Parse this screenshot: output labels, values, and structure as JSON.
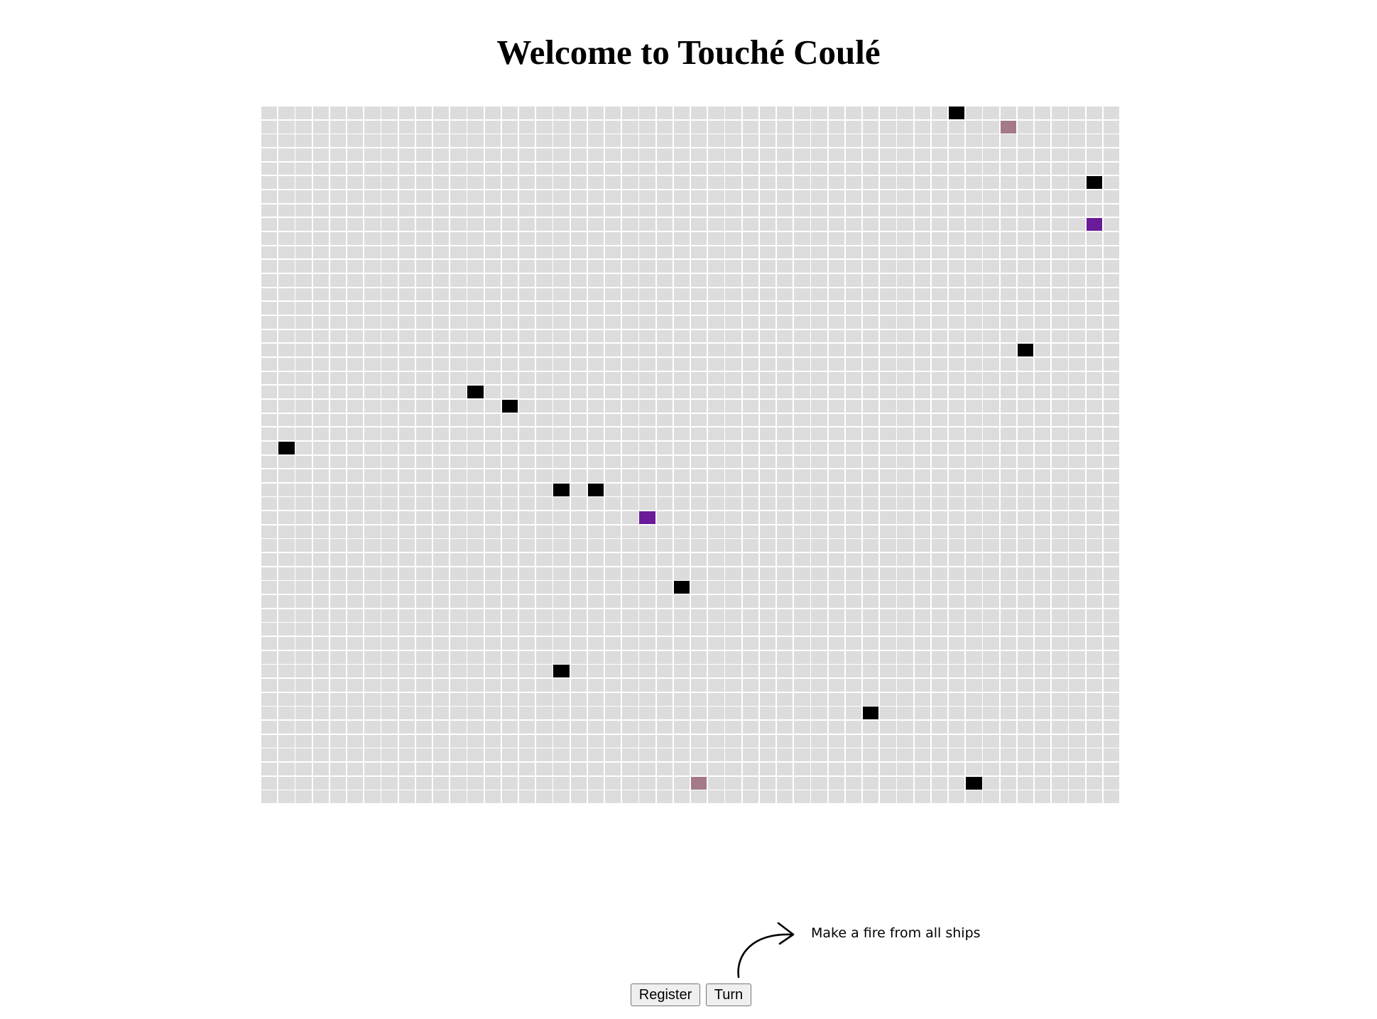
{
  "title": "Welcome to Touché Coulé",
  "board": {
    "cols": 50,
    "rows": 50,
    "colors": {
      "empty": "#dcdcdc",
      "ship": "#000000",
      "hit": "#6a1b9a",
      "miss": "#a47a86"
    },
    "marks": [
      {
        "col": 40,
        "row": 0,
        "state": "ship"
      },
      {
        "col": 43,
        "row": 1,
        "state": "miss"
      },
      {
        "col": 48,
        "row": 5,
        "state": "ship"
      },
      {
        "col": 48,
        "row": 8,
        "state": "hit"
      },
      {
        "col": 44,
        "row": 17,
        "state": "ship"
      },
      {
        "col": 12,
        "row": 20,
        "state": "ship"
      },
      {
        "col": 14,
        "row": 21,
        "state": "ship"
      },
      {
        "col": 1,
        "row": 24,
        "state": "ship"
      },
      {
        "col": 17,
        "row": 27,
        "state": "ship"
      },
      {
        "col": 19,
        "row": 27,
        "state": "ship"
      },
      {
        "col": 22,
        "row": 29,
        "state": "hit"
      },
      {
        "col": 24,
        "row": 34,
        "state": "ship"
      },
      {
        "col": 17,
        "row": 40,
        "state": "ship"
      },
      {
        "col": 35,
        "row": 43,
        "state": "ship"
      },
      {
        "col": 25,
        "row": 48,
        "state": "miss"
      },
      {
        "col": 41,
        "row": 48,
        "state": "ship"
      }
    ]
  },
  "controls": {
    "register_label": "Register",
    "turn_label": "Turn"
  },
  "hint": {
    "text": "Make a fire from all ships",
    "icon": "curved-arrow-icon"
  }
}
